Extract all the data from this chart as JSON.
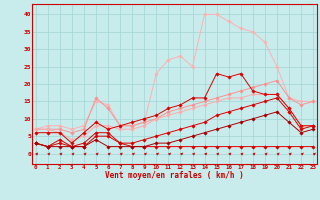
{
  "x": [
    0,
    1,
    2,
    3,
    4,
    5,
    6,
    7,
    8,
    9,
    10,
    11,
    12,
    13,
    14,
    15,
    16,
    17,
    18,
    19,
    20,
    21,
    22,
    23
  ],
  "line_pink_upper": [
    7,
    8,
    8,
    7,
    8,
    15,
    14,
    8,
    8,
    9,
    23,
    27,
    28,
    25,
    40,
    40,
    38,
    36,
    35,
    32,
    25,
    16,
    15,
    15
  ],
  "line_pink_mid": [
    7,
    7,
    7,
    6,
    7,
    16,
    13,
    8,
    8,
    9,
    10,
    12,
    13,
    14,
    15,
    16,
    17,
    18,
    19,
    20,
    21,
    16,
    14,
    15
  ],
  "line_pink_lower": [
    7,
    7,
    6,
    4,
    5,
    8,
    8,
    7,
    7,
    8,
    10,
    11,
    12,
    13,
    14,
    15,
    16,
    16,
    17,
    17,
    17,
    13,
    8,
    8
  ],
  "line_red_upper": [
    6,
    6,
    6,
    3,
    6,
    9,
    7,
    8,
    9,
    10,
    11,
    13,
    14,
    16,
    16,
    23,
    22,
    23,
    18,
    17,
    17,
    13,
    8,
    8
  ],
  "line_red_mid": [
    3,
    2,
    4,
    2,
    3,
    6,
    6,
    3,
    3,
    4,
    5,
    6,
    7,
    8,
    9,
    11,
    12,
    13,
    14,
    15,
    16,
    12,
    7,
    8
  ],
  "line_red_lower": [
    3,
    2,
    3,
    2,
    2,
    5,
    5,
    3,
    2,
    2,
    2,
    2,
    2,
    2,
    2,
    2,
    2,
    2,
    2,
    2,
    2,
    2,
    2,
    2
  ],
  "line_dark_red": [
    3,
    2,
    2,
    2,
    2,
    4,
    2,
    2,
    2,
    2,
    3,
    3,
    4,
    5,
    6,
    7,
    8,
    9,
    10,
    11,
    12,
    9,
    6,
    7
  ],
  "color_pink_light": "#ffb0b0",
  "color_pink_mid": "#ff9090",
  "color_pink_lower": "#ffaaaa",
  "color_red": "#dd0000",
  "color_dark_red": "#aa0000",
  "xlabel": "Vent moyen/en rafales ( km/h )",
  "ylim": [
    0,
    42
  ],
  "xlim": [
    -0.3,
    23.3
  ],
  "yticks": [
    0,
    5,
    10,
    15,
    20,
    25,
    30,
    35,
    40
  ],
  "xticks": [
    0,
    1,
    2,
    3,
    4,
    5,
    6,
    7,
    8,
    9,
    10,
    11,
    12,
    13,
    14,
    15,
    16,
    17,
    18,
    19,
    20,
    21,
    22,
    23
  ],
  "bg_color": "#c8ecec",
  "grid_color": "#a0d4d4"
}
